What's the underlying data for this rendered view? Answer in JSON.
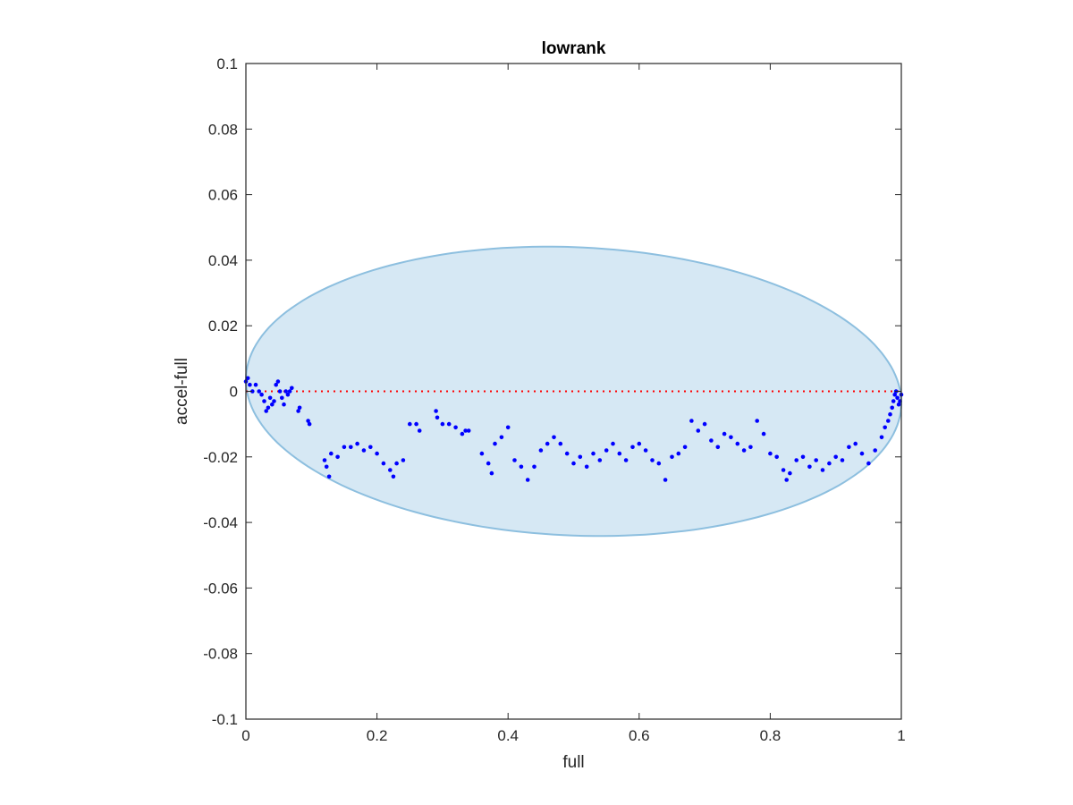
{
  "chart_data": {
    "type": "scatter",
    "title": "lowrank",
    "xlabel": "full",
    "ylabel": "accel-full",
    "xlim": [
      0,
      1
    ],
    "ylim": [
      -0.1,
      0.1
    ],
    "xticks": [
      0,
      0.2,
      0.4,
      0.6,
      0.8,
      1
    ],
    "xtick_labels": [
      "0",
      "0.2",
      "0.4",
      "0.6",
      "0.8",
      "1"
    ],
    "yticks": [
      -0.1,
      -0.08,
      -0.06,
      -0.04,
      -0.02,
      0,
      0.02,
      0.04,
      0.06,
      0.08,
      0.1
    ],
    "ytick_labels": [
      "-0.1",
      "-0.08",
      "-0.06",
      "-0.04",
      "-0.02",
      "0",
      "0.02",
      "0.04",
      "0.06",
      "0.08",
      "0.1"
    ],
    "grid": false,
    "legend": "none",
    "reference_line": {
      "y": 0,
      "style": "dotted",
      "color": "#ff0000"
    },
    "ellipse": {
      "center": [
        0.5,
        0
      ],
      "semi_x": 0.5,
      "semi_y": 0.044,
      "tilt": -0.0035,
      "fill": "#d6e8f4",
      "stroke": "#8dbfdf"
    },
    "series": [
      {
        "color": "#0000ff",
        "x": [
          0.0,
          0.003,
          0.006,
          0.01,
          0.015,
          0.02,
          0.024,
          0.028,
          0.031,
          0.034,
          0.037,
          0.04,
          0.043,
          0.046,
          0.049,
          0.052,
          0.055,
          0.058,
          0.061,
          0.064,
          0.067,
          0.07,
          0.08,
          0.082,
          0.095,
          0.097,
          0.12,
          0.123,
          0.127,
          0.13,
          0.14,
          0.15,
          0.16,
          0.17,
          0.18,
          0.19,
          0.2,
          0.21,
          0.22,
          0.225,
          0.23,
          0.24,
          0.25,
          0.26,
          0.265,
          0.29,
          0.292,
          0.3,
          0.31,
          0.32,
          0.33,
          0.335,
          0.34,
          0.36,
          0.37,
          0.375,
          0.38,
          0.39,
          0.4,
          0.41,
          0.42,
          0.43,
          0.44,
          0.45,
          0.46,
          0.47,
          0.48,
          0.49,
          0.5,
          0.51,
          0.52,
          0.53,
          0.54,
          0.55,
          0.56,
          0.57,
          0.58,
          0.59,
          0.6,
          0.61,
          0.62,
          0.63,
          0.64,
          0.65,
          0.66,
          0.67,
          0.68,
          0.69,
          0.7,
          0.71,
          0.72,
          0.73,
          0.74,
          0.75,
          0.76,
          0.77,
          0.78,
          0.79,
          0.8,
          0.81,
          0.82,
          0.825,
          0.83,
          0.84,
          0.85,
          0.86,
          0.87,
          0.88,
          0.89,
          0.9,
          0.91,
          0.92,
          0.93,
          0.94,
          0.95,
          0.96,
          0.97,
          0.975,
          0.98,
          0.983,
          0.986,
          0.988,
          0.99,
          0.992,
          0.994,
          0.996,
          0.998,
          1.0
        ],
        "y": [
          0.003,
          0.004,
          0.002,
          0.0,
          0.002,
          0.0,
          -0.001,
          -0.003,
          -0.006,
          -0.005,
          -0.002,
          -0.004,
          -0.003,
          0.002,
          0.003,
          0.0,
          -0.002,
          -0.004,
          0.0,
          -0.001,
          0.0,
          0.001,
          -0.006,
          -0.005,
          -0.009,
          -0.01,
          -0.021,
          -0.023,
          -0.026,
          -0.019,
          -0.02,
          -0.017,
          -0.017,
          -0.016,
          -0.018,
          -0.017,
          -0.019,
          -0.022,
          -0.024,
          -0.026,
          -0.022,
          -0.021,
          -0.01,
          -0.01,
          -0.012,
          -0.006,
          -0.008,
          -0.01,
          -0.01,
          -0.011,
          -0.013,
          -0.012,
          -0.012,
          -0.019,
          -0.022,
          -0.025,
          -0.016,
          -0.014,
          -0.011,
          -0.021,
          -0.023,
          -0.027,
          -0.023,
          -0.018,
          -0.016,
          -0.014,
          -0.016,
          -0.019,
          -0.022,
          -0.02,
          -0.023,
          -0.019,
          -0.021,
          -0.018,
          -0.016,
          -0.019,
          -0.021,
          -0.017,
          -0.016,
          -0.018,
          -0.021,
          -0.022,
          -0.027,
          -0.02,
          -0.019,
          -0.017,
          -0.009,
          -0.012,
          -0.01,
          -0.015,
          -0.017,
          -0.013,
          -0.014,
          -0.016,
          -0.018,
          -0.017,
          -0.009,
          -0.013,
          -0.019,
          -0.02,
          -0.024,
          -0.027,
          -0.025,
          -0.021,
          -0.02,
          -0.023,
          -0.021,
          -0.024,
          -0.022,
          -0.02,
          -0.021,
          -0.017,
          -0.016,
          -0.019,
          -0.022,
          -0.018,
          -0.014,
          -0.011,
          -0.009,
          -0.007,
          -0.005,
          -0.003,
          -0.001,
          0.0,
          -0.002,
          -0.004,
          -0.003,
          -0.001
        ]
      }
    ]
  }
}
